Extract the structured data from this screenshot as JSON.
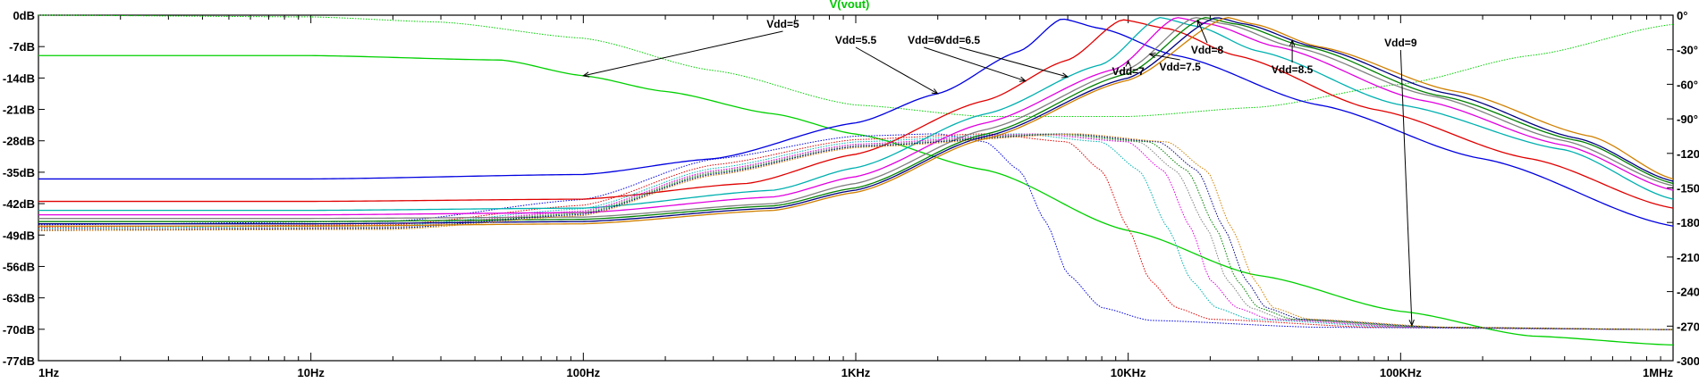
{
  "chart_data": {
    "type": "line",
    "title": "V(vout)",
    "x_scale": "log",
    "xlim": [
      1,
      1000000
    ],
    "ylim_left_db": [
      -77,
      0
    ],
    "ylim_right_deg": [
      -300,
      0
    ],
    "grid": false,
    "x_ticks": [
      "1Hz",
      "10Hz",
      "100Hz",
      "1KHz",
      "10KHz",
      "100KHz",
      "1MHz"
    ],
    "y_ticks_left": [
      "0dB",
      "-7dB",
      "-14dB",
      "-21dB",
      "-28dB",
      "-35dB",
      "-42dB",
      "-49dB",
      "-56dB",
      "-63dB",
      "-70dB",
      "-77dB"
    ],
    "y_ticks_right": [
      "0°",
      "-30°",
      "-60°",
      "-90°",
      "-120°",
      "-150°",
      "-180°",
      "-210°",
      "-240°",
      "-270°",
      "-300°"
    ],
    "colors": {
      "title": "#00c800",
      "axis": "#000000"
    },
    "series": [
      {
        "name": "Vdd=5",
        "color": "#00d000",
        "magnitude": [
          [
            1,
            -9
          ],
          [
            10,
            -9
          ],
          [
            50,
            -10
          ],
          [
            100,
            -13.5
          ],
          [
            200,
            -17
          ],
          [
            500,
            -22
          ],
          [
            1000,
            -26.5
          ],
          [
            3000,
            -34.5
          ],
          [
            10000,
            -48
          ],
          [
            30000,
            -58
          ],
          [
            100000,
            -66
          ],
          [
            300000,
            -71.5
          ],
          [
            1000000,
            -73.5
          ]
        ],
        "phase": [
          [
            1,
            0
          ],
          [
            10,
            -1.5
          ],
          [
            30,
            -6
          ],
          [
            100,
            -20
          ],
          [
            300,
            -48
          ],
          [
            1000,
            -78
          ],
          [
            3000,
            -88
          ],
          [
            10000,
            -88
          ],
          [
            30000,
            -80
          ],
          [
            100000,
            -60
          ],
          [
            300000,
            -35
          ],
          [
            1000000,
            -8
          ]
        ]
      },
      {
        "name": "Vdd=5.5",
        "color": "#0000e0",
        "magnitude": [
          [
            1,
            -36.5
          ],
          [
            10,
            -36.5
          ],
          [
            100,
            -35.5
          ],
          [
            300,
            -32
          ],
          [
            1000,
            -24
          ],
          [
            2000,
            -17.5
          ],
          [
            4000,
            -8
          ],
          [
            5700,
            -0.8
          ],
          [
            8000,
            -3
          ],
          [
            15000,
            -9
          ],
          [
            50000,
            -20
          ],
          [
            200000,
            -32
          ],
          [
            1000000,
            -47
          ]
        ],
        "phase": [
          [
            1,
            -182
          ],
          [
            20,
            -179
          ],
          [
            100,
            -160
          ],
          [
            300,
            -125
          ],
          [
            1000,
            -105
          ],
          [
            2000,
            -103
          ],
          [
            3000,
            -110
          ],
          [
            4000,
            -135
          ],
          [
            5000,
            -180
          ],
          [
            6000,
            -225
          ],
          [
            8000,
            -254
          ],
          [
            12000,
            -265
          ],
          [
            50000,
            -271
          ],
          [
            1000000,
            -273
          ]
        ]
      },
      {
        "name": "Vdd=6",
        "color": "#e00000",
        "magnitude": [
          [
            1,
            -41.5
          ],
          [
            10,
            -41.5
          ],
          [
            100,
            -41
          ],
          [
            400,
            -37.5
          ],
          [
            1000,
            -31
          ],
          [
            3000,
            -19
          ],
          [
            6000,
            -10
          ],
          [
            9500,
            -1
          ],
          [
            14000,
            -3
          ],
          [
            25000,
            -9
          ],
          [
            80000,
            -21
          ],
          [
            300000,
            -32
          ],
          [
            1000000,
            -43
          ]
        ],
        "phase": [
          [
            1,
            -184
          ],
          [
            20,
            -182
          ],
          [
            100,
            -165
          ],
          [
            300,
            -130
          ],
          [
            1000,
            -108
          ],
          [
            3000,
            -103
          ],
          [
            6000,
            -110
          ],
          [
            8000,
            -135
          ],
          [
            10000,
            -185
          ],
          [
            12000,
            -230
          ],
          [
            15000,
            -254
          ],
          [
            20000,
            -264
          ],
          [
            80000,
            -271
          ],
          [
            1000000,
            -273
          ]
        ]
      },
      {
        "name": "Vdd=6.5",
        "color": "#00b0b0",
        "magnitude": [
          [
            1,
            -43.5
          ],
          [
            10,
            -43.5
          ],
          [
            100,
            -43
          ],
          [
            500,
            -39
          ],
          [
            1000,
            -34
          ],
          [
            3000,
            -22
          ],
          [
            8000,
            -11
          ],
          [
            13000,
            -0.5
          ],
          [
            18000,
            -2.5
          ],
          [
            30000,
            -8
          ],
          [
            100000,
            -20
          ],
          [
            400000,
            -30
          ],
          [
            1000000,
            -41
          ]
        ],
        "phase": [
          [
            1,
            -185
          ],
          [
            20,
            -183
          ],
          [
            100,
            -168
          ],
          [
            300,
            -133
          ],
          [
            1000,
            -110
          ],
          [
            4000,
            -103
          ],
          [
            8000,
            -110
          ],
          [
            11000,
            -135
          ],
          [
            14000,
            -185
          ],
          [
            17000,
            -230
          ],
          [
            21000,
            -254
          ],
          [
            28000,
            -264
          ],
          [
            100000,
            -271
          ],
          [
            1000000,
            -273
          ]
        ]
      },
      {
        "name": "Vdd=7",
        "color": "#e000e0",
        "magnitude": [
          [
            1,
            -44.5
          ],
          [
            10,
            -44.5
          ],
          [
            100,
            -44
          ],
          [
            500,
            -40.5
          ],
          [
            1000,
            -36
          ],
          [
            3000,
            -24
          ],
          [
            9000,
            -12
          ],
          [
            15000,
            -0.5
          ],
          [
            20000,
            -2
          ],
          [
            35000,
            -7
          ],
          [
            120000,
            -19
          ],
          [
            400000,
            -29
          ],
          [
            1000000,
            -39
          ]
        ],
        "phase": [
          [
            1,
            -186
          ],
          [
            20,
            -184
          ],
          [
            100,
            -170
          ],
          [
            300,
            -135
          ],
          [
            1000,
            -112
          ],
          [
            4500,
            -103
          ],
          [
            10000,
            -110
          ],
          [
            13500,
            -135
          ],
          [
            17000,
            -185
          ],
          [
            20000,
            -230
          ],
          [
            25000,
            -254
          ],
          [
            33000,
            -264
          ],
          [
            110000,
            -271
          ],
          [
            1000000,
            -273
          ]
        ]
      },
      {
        "name": "Vdd=7.5",
        "color": "#808080",
        "magnitude": [
          [
            1,
            -45.3
          ],
          [
            10,
            -45.3
          ],
          [
            100,
            -45
          ],
          [
            500,
            -42
          ],
          [
            1000,
            -37.5
          ],
          [
            3000,
            -25.5
          ],
          [
            10000,
            -12
          ],
          [
            17500,
            -0.5
          ],
          [
            23000,
            -2
          ],
          [
            40000,
            -7
          ],
          [
            130000,
            -18
          ],
          [
            400000,
            -28
          ],
          [
            1000000,
            -38
          ]
        ],
        "phase": [
          [
            1,
            -186
          ],
          [
            20,
            -184
          ],
          [
            100,
            -171
          ],
          [
            300,
            -136
          ],
          [
            1000,
            -113
          ],
          [
            5000,
            -103
          ],
          [
            11000,
            -110
          ],
          [
            15000,
            -135
          ],
          [
            19500,
            -185
          ],
          [
            23000,
            -230
          ],
          [
            28000,
            -254
          ],
          [
            37000,
            -264
          ],
          [
            120000,
            -271
          ],
          [
            1000000,
            -273
          ]
        ]
      },
      {
        "name": "Vdd=8",
        "color": "#008000",
        "magnitude": [
          [
            1,
            -46
          ],
          [
            10,
            -46
          ],
          [
            100,
            -45.5
          ],
          [
            500,
            -42.5
          ],
          [
            1000,
            -38.5
          ],
          [
            3000,
            -26.5
          ],
          [
            10000,
            -13
          ],
          [
            19000,
            -0.5
          ],
          [
            25000,
            -2
          ],
          [
            45000,
            -7
          ],
          [
            140000,
            -18
          ],
          [
            450000,
            -28
          ],
          [
            1000000,
            -37.5
          ]
        ],
        "phase": [
          [
            1,
            -187
          ],
          [
            20,
            -185
          ],
          [
            100,
            -172
          ],
          [
            300,
            -137
          ],
          [
            1000,
            -114
          ],
          [
            5500,
            -103
          ],
          [
            12000,
            -110
          ],
          [
            16500,
            -135
          ],
          [
            21000,
            -185
          ],
          [
            25000,
            -230
          ],
          [
            30000,
            -254
          ],
          [
            40000,
            -264
          ],
          [
            130000,
            -271
          ],
          [
            1000000,
            -273
          ]
        ]
      },
      {
        "name": "Vdd=8.5",
        "color": "#000080",
        "magnitude": [
          [
            1,
            -46.5
          ],
          [
            10,
            -46.5
          ],
          [
            100,
            -46
          ],
          [
            500,
            -43
          ],
          [
            1000,
            -39
          ],
          [
            3000,
            -27
          ],
          [
            10000,
            -14
          ],
          [
            21000,
            -0.5
          ],
          [
            27000,
            -2
          ],
          [
            48000,
            -7
          ],
          [
            150000,
            -17.5
          ],
          [
            450000,
            -27.5
          ],
          [
            1000000,
            -37
          ]
        ],
        "phase": [
          [
            1,
            -187
          ],
          [
            20,
            -185
          ],
          [
            100,
            -173
          ],
          [
            300,
            -138
          ],
          [
            1000,
            -114
          ],
          [
            6000,
            -103
          ],
          [
            13000,
            -110
          ],
          [
            18000,
            -135
          ],
          [
            22500,
            -185
          ],
          [
            27000,
            -230
          ],
          [
            32000,
            -254
          ],
          [
            43000,
            -264
          ],
          [
            140000,
            -271
          ],
          [
            1000000,
            -273
          ]
        ]
      },
      {
        "name": "Vdd=9",
        "color": "#d08000",
        "magnitude": [
          [
            1,
            -47
          ],
          [
            10,
            -47
          ],
          [
            100,
            -46.5
          ],
          [
            500,
            -43.5
          ],
          [
            1000,
            -39.5
          ],
          [
            3000,
            -27.5
          ],
          [
            10000,
            -14.5
          ],
          [
            23000,
            -0.5
          ],
          [
            29000,
            -2
          ],
          [
            50000,
            -7
          ],
          [
            160000,
            -17
          ],
          [
            500000,
            -27
          ],
          [
            1000000,
            -36.5
          ]
        ],
        "phase": [
          [
            1,
            -187
          ],
          [
            20,
            -186
          ],
          [
            100,
            -174
          ],
          [
            300,
            -139
          ],
          [
            1000,
            -115
          ],
          [
            6500,
            -103
          ],
          [
            14000,
            -110
          ],
          [
            19500,
            -135
          ],
          [
            24000,
            -185
          ],
          [
            29000,
            -230
          ],
          [
            34000,
            -254
          ],
          [
            46000,
            -264
          ],
          [
            150000,
            -271
          ],
          [
            1000000,
            -273
          ]
        ]
      }
    ],
    "annotations": [
      {
        "text": "Vdd=5",
        "label_x": 540,
        "label_y": 31
      },
      {
        "text": "Vdd=5.5",
        "label_x": 1000,
        "label_y": 49
      },
      {
        "text": "Vdd=6",
        "label_x": 1780,
        "label_y": 49
      },
      {
        "text": "Vdd=6.5",
        "label_x": 2400,
        "label_y": 49
      },
      {
        "text": "Vdd=7",
        "label_x": 10000,
        "label_y": 84
      },
      {
        "text": "Vdd=7.5",
        "label_x": 15500,
        "label_y": 79
      },
      {
        "text": "Vdd=8",
        "label_x": 19500,
        "label_y": 60
      },
      {
        "text": "Vdd=8.5",
        "label_x": 40000,
        "label_y": 82
      },
      {
        "text": "Vdd=9",
        "label_x": 100000,
        "label_y": 52
      }
    ]
  }
}
